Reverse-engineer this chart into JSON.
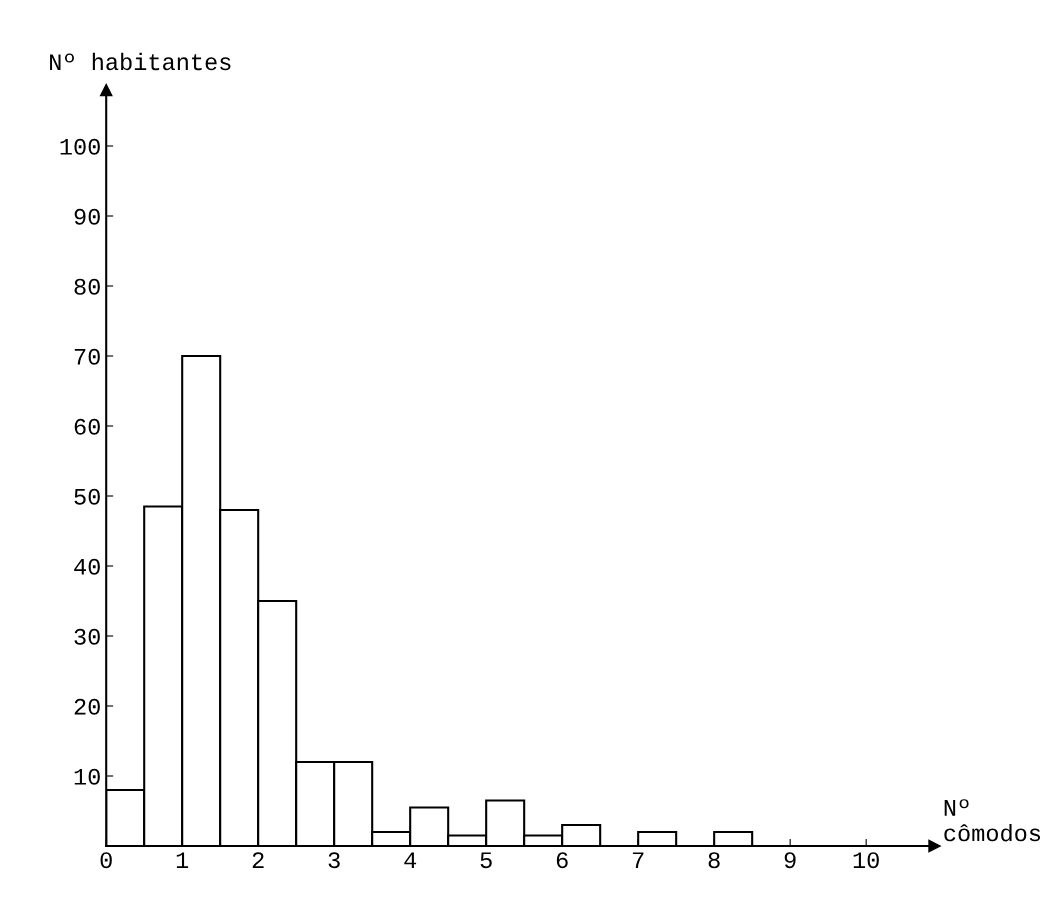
{
  "chart_data": {
    "type": "histogram",
    "xlabel": "Nº\ncômodos",
    "ylabel": "Nº habitantes",
    "bins": [
      0,
      0.5,
      1,
      1.5,
      2,
      2.5,
      3,
      3.5,
      4,
      4.5,
      5,
      5.5,
      6,
      6.5,
      7,
      7.5,
      8,
      8.5
    ],
    "values": [
      8,
      48.5,
      70,
      48,
      35,
      12,
      12,
      2,
      5.5,
      1.5,
      6.5,
      1.5,
      3,
      0,
      2,
      0,
      2
    ],
    "color": "#ffffff",
    "xlim": [
      0,
      10.9
    ],
    "ylim": [
      0,
      108
    ],
    "xticks": [
      0,
      1,
      2,
      3,
      4,
      5,
      6,
      7,
      8,
      9,
      10
    ],
    "yticks": [
      10,
      20,
      30,
      40,
      50,
      60,
      70,
      80,
      90,
      100
    ],
    "grid": false
  }
}
